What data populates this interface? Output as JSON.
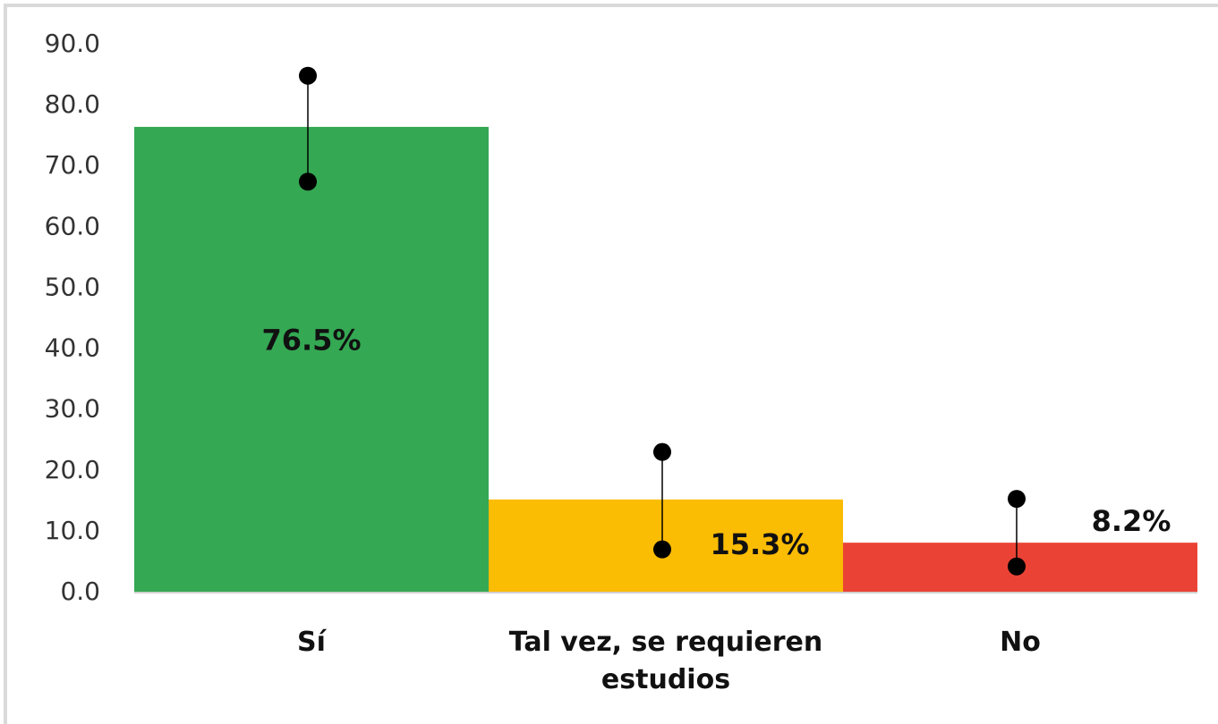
{
  "chart_data": {
    "type": "bar",
    "categories": [
      "Sí",
      "Tal vez, se requieren estudios",
      "No"
    ],
    "values": [
      76.5,
      15.3,
      8.2
    ],
    "value_labels": [
      "76.5%",
      "15.3%",
      "8.2%"
    ],
    "error_plus": [
      8.4,
      7.8,
      7.2
    ],
    "error_minus": [
      9.0,
      8.2,
      3.9
    ],
    "colors": [
      "#34a853",
      "#fbbc04",
      "#ea4335"
    ],
    "ylim": [
      0,
      90
    ],
    "yticks": [
      {
        "value": 0,
        "label": "0.0"
      },
      {
        "value": 10,
        "label": "10.0"
      },
      {
        "value": 20,
        "label": "20.0"
      },
      {
        "value": 30,
        "label": "30.0"
      },
      {
        "value": 40,
        "label": "40.0"
      },
      {
        "value": 50,
        "label": "50.0"
      },
      {
        "value": 60,
        "label": "60.0"
      },
      {
        "value": 70,
        "label": "70.0"
      },
      {
        "value": 80,
        "label": "80.0"
      },
      {
        "value": 90,
        "label": "90.0"
      }
    ],
    "grid": false
  }
}
